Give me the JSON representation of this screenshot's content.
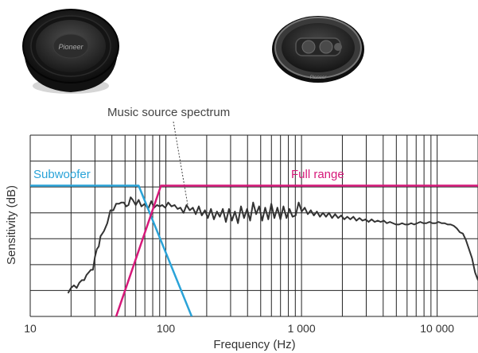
{
  "chart_data": {
    "type": "line",
    "xlabel": "Frequency (Hz)",
    "ylabel": "Sensitivity (dB)",
    "x_scale": "log",
    "xlim": [
      10,
      20000
    ],
    "ylim": [
      0,
      7
    ],
    "grid": true,
    "x_tick_labels": [
      {
        "value": 10,
        "label": "10"
      },
      {
        "value": 100,
        "label": "100"
      },
      {
        "value": 1000,
        "label": "1 000"
      },
      {
        "value": 10000,
        "label": "10 000"
      }
    ],
    "annotation": {
      "text": "Music source spectrum",
      "points_to": {
        "x": 145,
        "y": 4.3
      }
    },
    "colors": {
      "subwoofer": "#2aa3d8",
      "full_range": "#d6197a",
      "spectrum": "#333333",
      "grid": "#222222"
    },
    "series": [
      {
        "name": "Subwoofer",
        "color": "#2aa3d8",
        "points": [
          [
            10,
            5.05
          ],
          [
            63,
            5.05
          ],
          [
            155,
            0
          ]
        ]
      },
      {
        "name": "Full range",
        "color": "#d6197a",
        "points": [
          [
            43,
            0
          ],
          [
            92,
            5.05
          ],
          [
            20000,
            5.05
          ]
        ]
      },
      {
        "name": "Music source spectrum",
        "color": "#333333",
        "points": [
          [
            19,
            0.9
          ],
          [
            20,
            1.1
          ],
          [
            21,
            1.2
          ],
          [
            22,
            1.1
          ],
          [
            23,
            1.3
          ],
          [
            24,
            1.4
          ],
          [
            25,
            1.4
          ],
          [
            26,
            1.6
          ],
          [
            27,
            1.7
          ],
          [
            28,
            1.8
          ],
          [
            29,
            1.8
          ],
          [
            30,
            2.3
          ],
          [
            31,
            2.6
          ],
          [
            32,
            2.7
          ],
          [
            33,
            3.1
          ],
          [
            34,
            3.2
          ],
          [
            35,
            3.3
          ],
          [
            37,
            3.6
          ],
          [
            39,
            4.1
          ],
          [
            41,
            4.1
          ],
          [
            43,
            4.35
          ],
          [
            45,
            4.35
          ],
          [
            47,
            4.4
          ],
          [
            49,
            4.4
          ],
          [
            51,
            4.25
          ],
          [
            53,
            4.3
          ],
          [
            55,
            4.6
          ],
          [
            57,
            4.5
          ],
          [
            60,
            4.3
          ],
          [
            63,
            4.5
          ],
          [
            66,
            4.25
          ],
          [
            70,
            4.35
          ],
          [
            74,
            4.15
          ],
          [
            78,
            4.45
          ],
          [
            82,
            4.2
          ],
          [
            86,
            4.3
          ],
          [
            90,
            4.25
          ],
          [
            94,
            4.3
          ],
          [
            99,
            4.2
          ],
          [
            104,
            4.4
          ],
          [
            110,
            4.25
          ],
          [
            116,
            4.3
          ],
          [
            122,
            4.15
          ],
          [
            128,
            4.2
          ],
          [
            135,
            4.0
          ],
          [
            142,
            4.3
          ],
          [
            150,
            4.1
          ],
          [
            158,
            4.2
          ],
          [
            166,
            3.95
          ],
          [
            175,
            4.25
          ],
          [
            184,
            3.9
          ],
          [
            194,
            4.1
          ],
          [
            204,
            3.8
          ],
          [
            215,
            4.15
          ],
          [
            226,
            3.75
          ],
          [
            238,
            4.05
          ],
          [
            250,
            3.85
          ],
          [
            263,
            4.15
          ],
          [
            277,
            3.65
          ],
          [
            292,
            4.15
          ],
          [
            307,
            3.7
          ],
          [
            323,
            4.05
          ],
          [
            340,
            3.6
          ],
          [
            358,
            4.25
          ],
          [
            377,
            3.8
          ],
          [
            397,
            4.15
          ],
          [
            418,
            3.7
          ],
          [
            440,
            4.4
          ],
          [
            463,
            3.95
          ],
          [
            487,
            4.25
          ],
          [
            513,
            3.7
          ],
          [
            540,
            4.2
          ],
          [
            569,
            3.75
          ],
          [
            599,
            4.35
          ],
          [
            631,
            3.8
          ],
          [
            664,
            4.2
          ],
          [
            699,
            3.75
          ],
          [
            736,
            4.25
          ],
          [
            775,
            3.8
          ],
          [
            816,
            4.15
          ],
          [
            859,
            3.85
          ],
          [
            905,
            3.9
          ],
          [
            953,
            4.4
          ],
          [
            1003,
            4.05
          ],
          [
            1056,
            4.2
          ],
          [
            1112,
            3.95
          ],
          [
            1171,
            4.1
          ],
          [
            1233,
            3.9
          ],
          [
            1298,
            4.05
          ],
          [
            1367,
            3.85
          ],
          [
            1439,
            4.0
          ],
          [
            1515,
            3.85
          ],
          [
            1595,
            4.0
          ],
          [
            1680,
            3.8
          ],
          [
            1769,
            3.95
          ],
          [
            1863,
            3.8
          ],
          [
            1961,
            3.9
          ],
          [
            2065,
            3.75
          ],
          [
            2175,
            3.85
          ],
          [
            2290,
            3.75
          ],
          [
            2411,
            3.85
          ],
          [
            2539,
            3.7
          ],
          [
            2674,
            3.8
          ],
          [
            2815,
            3.7
          ],
          [
            2965,
            3.75
          ],
          [
            3122,
            3.65
          ],
          [
            3287,
            3.75
          ],
          [
            3462,
            3.65
          ],
          [
            3645,
            3.7
          ],
          [
            3838,
            3.65
          ],
          [
            4042,
            3.7
          ],
          [
            4256,
            3.6
          ],
          [
            4482,
            3.65
          ],
          [
            4719,
            3.6
          ],
          [
            4969,
            3.55
          ],
          [
            5233,
            3.55
          ],
          [
            5510,
            3.6
          ],
          [
            5802,
            3.55
          ],
          [
            6110,
            3.55
          ],
          [
            6433,
            3.6
          ],
          [
            6774,
            3.55
          ],
          [
            7133,
            3.6
          ],
          [
            7511,
            3.65
          ],
          [
            7909,
            3.6
          ],
          [
            8328,
            3.6
          ],
          [
            8769,
            3.65
          ],
          [
            9234,
            3.6
          ],
          [
            9723,
            3.6
          ],
          [
            10238,
            3.65
          ],
          [
            10780,
            3.6
          ],
          [
            11351,
            3.6
          ],
          [
            11953,
            3.55
          ],
          [
            12586,
            3.55
          ],
          [
            13253,
            3.5
          ],
          [
            13956,
            3.4
          ],
          [
            14695,
            3.25
          ],
          [
            15474,
            3.2
          ],
          [
            16294,
            2.95
          ],
          [
            17158,
            2.6
          ],
          [
            18067,
            2.25
          ],
          [
            19025,
            1.7
          ],
          [
            20000,
            1.4
          ]
        ]
      }
    ]
  },
  "images": {
    "subwoofer_brand": "Pioneer",
    "coaxial_brand": "Pioneer"
  }
}
